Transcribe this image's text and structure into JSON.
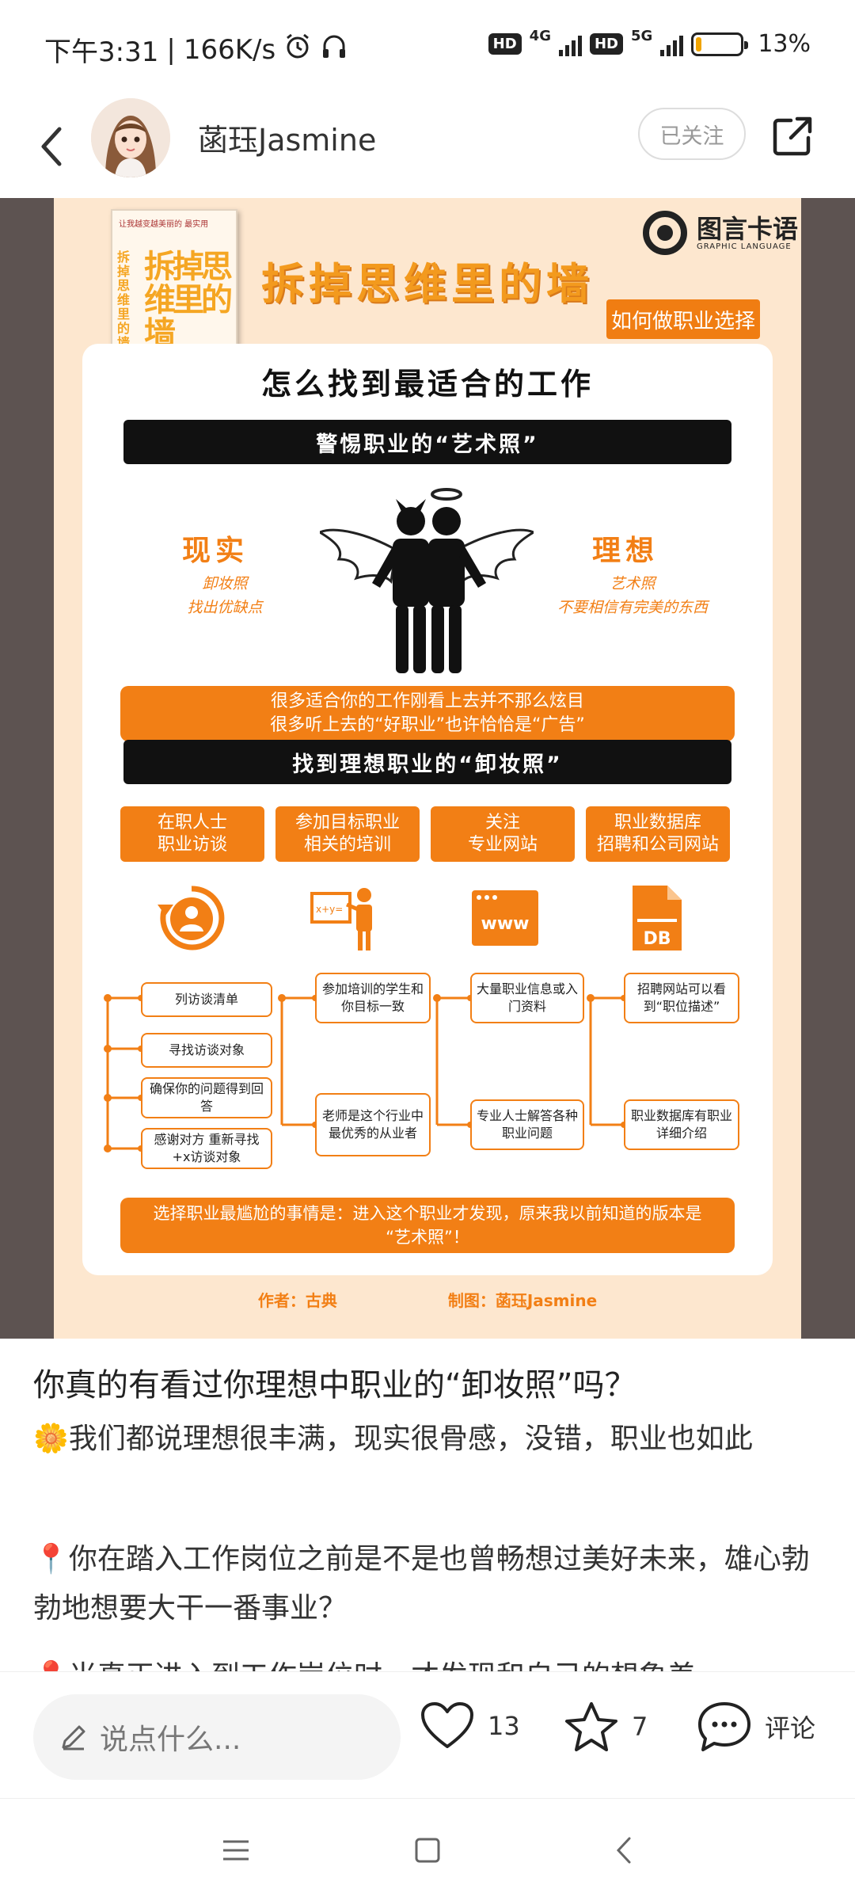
{
  "status_bar": {
    "time": "下午3:31",
    "speed": "166K/s",
    "hd1": "HD",
    "net1": "4G",
    "hd2": "HD",
    "net2": "5G",
    "battery_percent": 13,
    "battery_label": "13%"
  },
  "header": {
    "username": "菡珏Jasmine",
    "follow_label": "已关注"
  },
  "poster": {
    "book_title": "拆掉思维里的墙",
    "book_small_text": "让我越变越美丽的 最实用",
    "brand_name": "图言卡语",
    "brand_sub": "GRAPHIC LANGUAGE",
    "title": "拆掉思维里的墙",
    "tag": "如何做职业选择",
    "card_title": "怎么找到最适合的工作",
    "section1": "警惕职业的“艺术照”",
    "reality_head": "现实",
    "reality_lines": [
      "卸妆照",
      "找出优缺点"
    ],
    "ideal_head": "理想",
    "ideal_lines": [
      "艺术照",
      "不要相信有完美的东西"
    ],
    "note1_lines": [
      "很多适合你的工作刚看上去并不那么炫目",
      "很多听上去的“好职业”也许恰恰是“广告”"
    ],
    "section2": "找到理想职业的“卸妆照”",
    "categories": [
      {
        "lines": [
          "在职人士",
          "职业访谈"
        ],
        "icon": "person-refresh-icon"
      },
      {
        "lines": [
          "参加目标职业",
          "相关的培训"
        ],
        "icon": "teacher-board-icon"
      },
      {
        "lines": [
          "关注",
          "专业网站"
        ],
        "icon": "www-browser-icon"
      },
      {
        "lines": [
          "职业数据库",
          "招聘和公司网站"
        ],
        "icon": "database-file-icon"
      }
    ],
    "www_text": "www",
    "db_text": "DB",
    "board_text": "x+y=",
    "col1_steps": [
      "列访谈清单",
      "寻找访谈对象",
      "确保你的问题得到回答",
      "感谢对方 重新寻找+x访谈对象"
    ],
    "col2_steps": [
      "参加培训的学生和你目标一致",
      "老师是这个行业中最优秀的从业者"
    ],
    "col3_steps": [
      "大量职业信息或入门资料",
      "专业人士解答各种职业问题"
    ],
    "col4_steps": [
      "招聘网站可以看到“职位描述”",
      "职业数据库有职业详细介绍"
    ],
    "note2_lines": [
      "选择职业最尴尬的事情是：进入这个职业才发现，原来我以前知道的版本是",
      "“艺术照”！"
    ],
    "author": "作者：古典",
    "designer": "制图：菡珏Jasmine"
  },
  "post": {
    "title": "你真的有看过你理想中职业的“卸妆照”吗？",
    "paragraphs": [
      "🌼我们都说理想很丰满，现实很骨感，没错，职业也如此",
      "📍你在踏入工作岗位之前是不是也曾畅想过美好未来，雄心勃勃地想要大干一番事业？",
      "📍当真正进入到工作岗位时，才发现和自己的想象差"
    ]
  },
  "bottom_bar": {
    "comment_placeholder": "说点什么...",
    "like_count": "13",
    "fav_count": "7",
    "comment_label": "评论"
  },
  "colors": {
    "accent_orange": "#f27f15",
    "poster_bg": "#fde7cf",
    "battery_fill": "#f0a400"
  }
}
